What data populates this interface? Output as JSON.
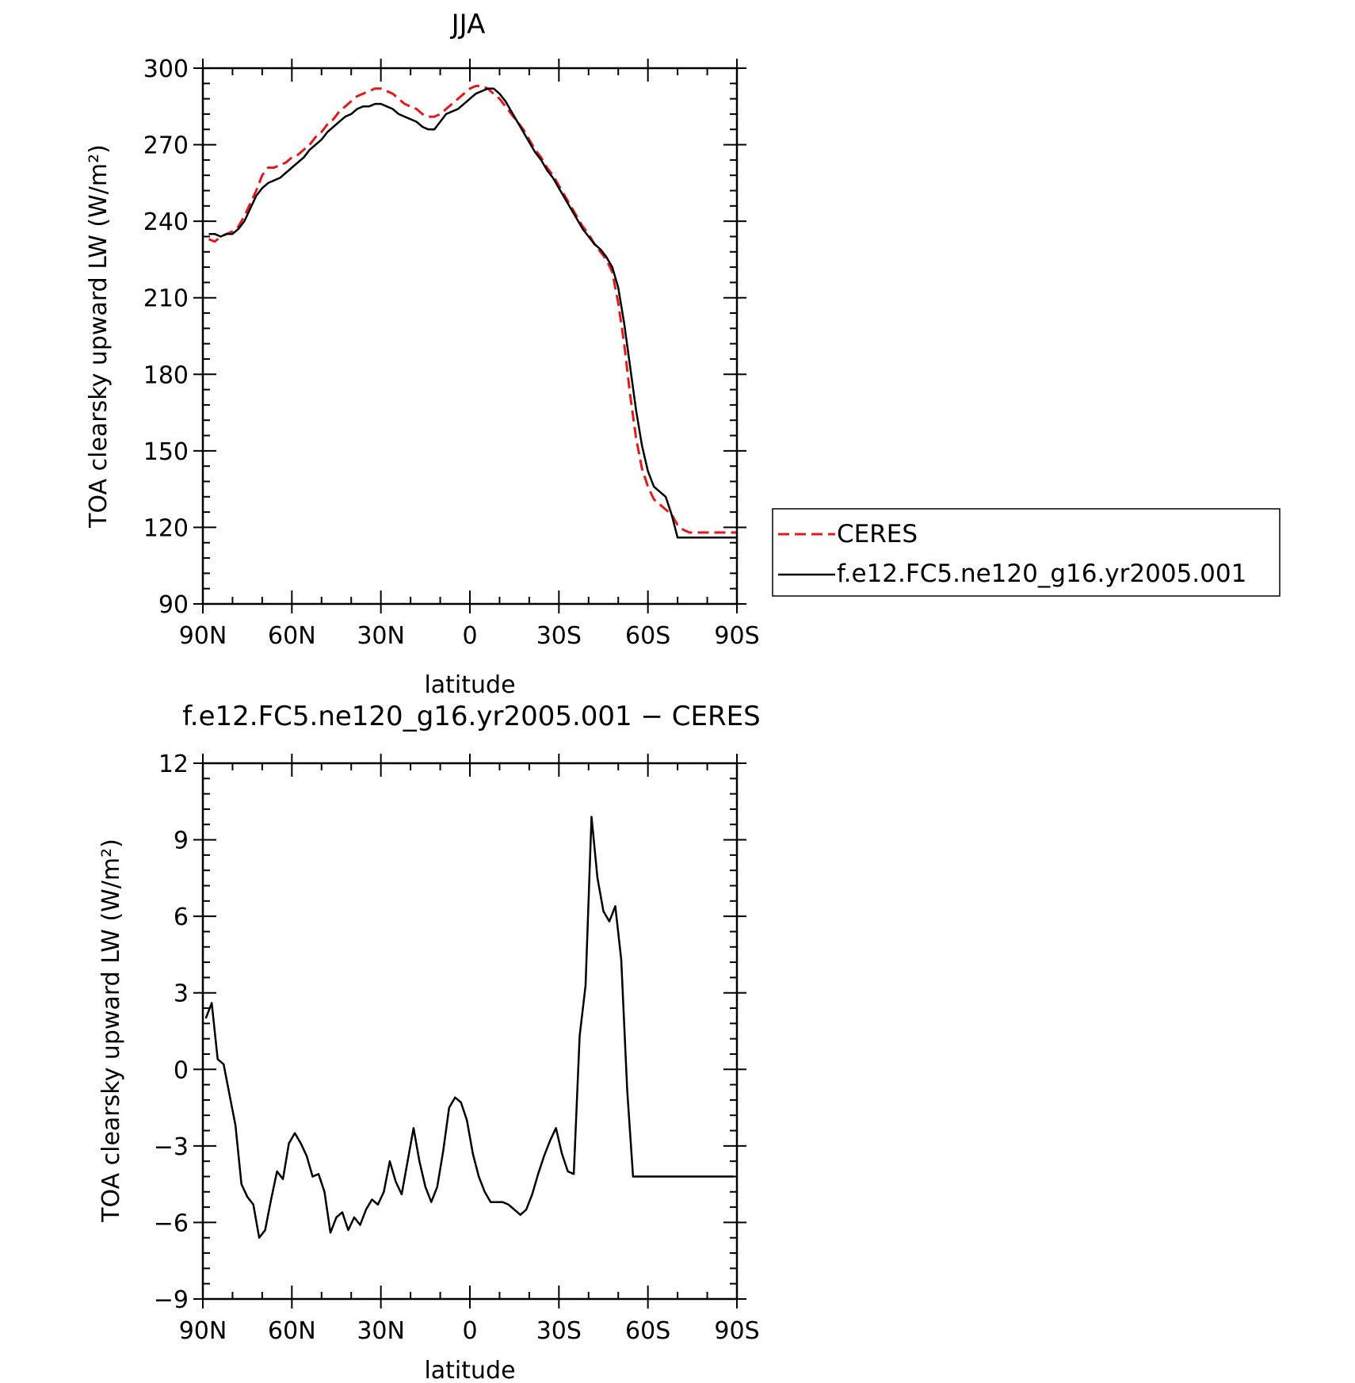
{
  "chart_data": [
    {
      "type": "line",
      "title": "JJA",
      "xlabel": "latitude",
      "ylabel": "TOA clearsky upward LW (W/m²)",
      "x_ticks": [
        "90N",
        "60N",
        "30N",
        "0",
        "30S",
        "60S",
        "90S"
      ],
      "x_tick_values": [
        90,
        60,
        30,
        0,
        -30,
        -60,
        -90
      ],
      "xlim": [
        90,
        -90
      ],
      "ylim": [
        90,
        300
      ],
      "y_ticks": [
        "90",
        "120",
        "150",
        "180",
        "210",
        "240",
        "270",
        "300"
      ],
      "y_tick_values": [
        90,
        120,
        150,
        180,
        210,
        240,
        270,
        300
      ],
      "legend_position": "right",
      "series": [
        {
          "name": "CERES",
          "color": "#e31a1c",
          "style": "dashed",
          "x": [
            88,
            86,
            84,
            82,
            80,
            78,
            76,
            74,
            72,
            70,
            68,
            66,
            64,
            62,
            60,
            58,
            56,
            54,
            52,
            50,
            48,
            46,
            44,
            42,
            40,
            38,
            36,
            34,
            32,
            30,
            28,
            26,
            24,
            22,
            20,
            18,
            16,
            14,
            12,
            10,
            8,
            6,
            4,
            2,
            0,
            -2,
            -4,
            -6,
            -8,
            -10,
            -12,
            -14,
            -16,
            -18,
            -20,
            -22,
            -24,
            -26,
            -28,
            -30,
            -32,
            -34,
            -36,
            -38,
            -40,
            -42,
            -44,
            -46,
            -48,
            -50,
            -52,
            -54,
            -56,
            -58,
            -60,
            -62,
            -64,
            -66,
            -68,
            -70,
            -72,
            -74,
            -76,
            -78,
            -80,
            -82,
            -84,
            -86,
            -88,
            -90
          ],
          "values": [
            233,
            232,
            234,
            235,
            236,
            238,
            242,
            247,
            252,
            258,
            261,
            261,
            262,
            263,
            265,
            266,
            268,
            270,
            273,
            275,
            278,
            280,
            283,
            285,
            287,
            289,
            290,
            291,
            292,
            292,
            291,
            290,
            288,
            286,
            285,
            284,
            282,
            281,
            281,
            282,
            284,
            286,
            288,
            290,
            292,
            293,
            293,
            292,
            290,
            288,
            285,
            282,
            279,
            276,
            272,
            268,
            265,
            261,
            258,
            254,
            250,
            246,
            242,
            238,
            235,
            231,
            228,
            225,
            220,
            208,
            192,
            172,
            155,
            143,
            136,
            131,
            129,
            127,
            125,
            121,
            119,
            118,
            118,
            118,
            118,
            118,
            118,
            118,
            118,
            118
          ]
        },
        {
          "name": "f.e12.FC5.ne120_g16.yr2005.001",
          "color": "#000000",
          "style": "solid",
          "x": [
            88,
            86,
            84,
            82,
            80,
            78,
            76,
            74,
            72,
            70,
            68,
            66,
            64,
            62,
            60,
            58,
            56,
            54,
            52,
            50,
            48,
            46,
            44,
            42,
            40,
            38,
            36,
            34,
            32,
            30,
            28,
            26,
            24,
            22,
            20,
            18,
            16,
            14,
            12,
            10,
            8,
            6,
            4,
            2,
            0,
            -2,
            -4,
            -6,
            -8,
            -10,
            -12,
            -14,
            -16,
            -18,
            -20,
            -22,
            -24,
            -26,
            -28,
            -30,
            -32,
            -34,
            -36,
            -38,
            -40,
            -42,
            -44,
            -46,
            -48,
            -50,
            -52,
            -54,
            -56,
            -58,
            -60,
            -62,
            -64,
            -66,
            -68,
            -70,
            -72,
            -74,
            -76,
            -78,
            -80,
            -82,
            -84,
            -86,
            -88,
            -90
          ],
          "values": [
            235,
            235,
            234,
            235,
            235,
            237,
            240,
            245,
            250,
            253,
            255,
            256,
            257,
            259,
            261,
            263,
            265,
            268,
            270,
            272,
            275,
            277,
            279,
            281,
            282,
            284,
            285,
            285,
            286,
            286,
            285,
            284,
            282,
            281,
            280,
            279,
            277,
            276,
            276,
            279,
            282,
            283,
            284,
            286,
            288,
            290,
            291,
            292,
            292,
            290,
            287,
            283,
            279,
            275,
            271,
            267,
            264,
            260,
            257,
            253,
            249,
            245,
            241,
            237,
            234,
            231,
            229,
            226,
            222,
            214,
            200,
            183,
            166,
            152,
            142,
            136,
            134,
            132,
            125,
            116,
            116,
            116,
            116,
            116,
            116,
            116,
            116,
            116,
            116,
            116
          ]
        }
      ]
    },
    {
      "type": "line",
      "title": "f.e12.FC5.ne120_g16.yr2005.001 − CERES",
      "xlabel": "latitude",
      "ylabel": "TOA clearsky upward LW (W/m²)",
      "x_ticks": [
        "90N",
        "60N",
        "30N",
        "0",
        "30S",
        "60S",
        "90S"
      ],
      "x_tick_values": [
        90,
        60,
        30,
        0,
        -30,
        -60,
        -90
      ],
      "xlim": [
        90,
        -90
      ],
      "ylim": [
        -9,
        12
      ],
      "y_ticks": [
        "−9",
        "−6",
        "−3",
        "0",
        "3",
        "6",
        "9",
        "12"
      ],
      "y_tick_values": [
        -9,
        -6,
        -3,
        0,
        3,
        6,
        9,
        12
      ],
      "series": [
        {
          "color": "#000000",
          "style": "solid",
          "x": [
            89,
            87,
            85,
            83,
            81,
            79,
            77,
            75,
            73,
            71,
            69,
            67,
            65,
            63,
            61,
            59,
            57,
            55,
            53,
            51,
            49,
            47,
            45,
            43,
            41,
            39,
            37,
            35,
            33,
            31,
            29,
            27,
            25,
            23,
            21,
            19,
            17,
            15,
            13,
            11,
            9,
            7,
            5,
            3,
            1,
            -1,
            -3,
            -5,
            -7,
            -9,
            -11,
            -13,
            -15,
            -17,
            -19,
            -21,
            -23,
            -25,
            -27,
            -29,
            -31,
            -33,
            -35,
            -37,
            -39,
            -41,
            -43,
            -45,
            -47,
            -49,
            -51,
            -53,
            -55,
            -57,
            -59,
            -61,
            -63,
            -65,
            -67,
            -69,
            -71,
            -73,
            -75,
            -77,
            -79,
            -81,
            -83,
            -85,
            -87,
            -89
          ],
          "values": [
            2.0,
            2.6,
            0.4,
            0.2,
            -1.0,
            -2.2,
            -4.5,
            -5.0,
            -5.3,
            -6.6,
            -6.3,
            -5.1,
            -4.0,
            -4.3,
            -2.9,
            -2.5,
            -2.9,
            -3.4,
            -4.2,
            -4.1,
            -4.8,
            -6.4,
            -5.8,
            -5.6,
            -6.3,
            -5.8,
            -6.1,
            -5.5,
            -5.1,
            -5.3,
            -4.8,
            -3.6,
            -4.4,
            -4.9,
            -3.6,
            -2.3,
            -3.6,
            -4.6,
            -5.2,
            -4.6,
            -3.2,
            -1.5,
            -1.1,
            -1.3,
            -2.0,
            -3.3,
            -4.2,
            -4.8,
            -5.2,
            -5.2,
            -5.2,
            -5.3,
            -5.5,
            -5.7,
            -5.5,
            -4.9,
            -4.1,
            -3.4,
            -2.8,
            -2.3,
            -3.3,
            -4.0,
            -4.1,
            1.3,
            3.3,
            9.9,
            7.5,
            6.2,
            5.8,
            6.4,
            4.3,
            -0.8,
            -4.2,
            -4.2,
            -4.2,
            -4.2,
            -4.2,
            -4.2,
            -4.2,
            -4.2,
            -4.2,
            -4.2,
            -4.2,
            -4.2,
            -4.2,
            -4.2,
            -4.2,
            -4.2,
            -4.2,
            -4.2
          ]
        }
      ]
    }
  ]
}
